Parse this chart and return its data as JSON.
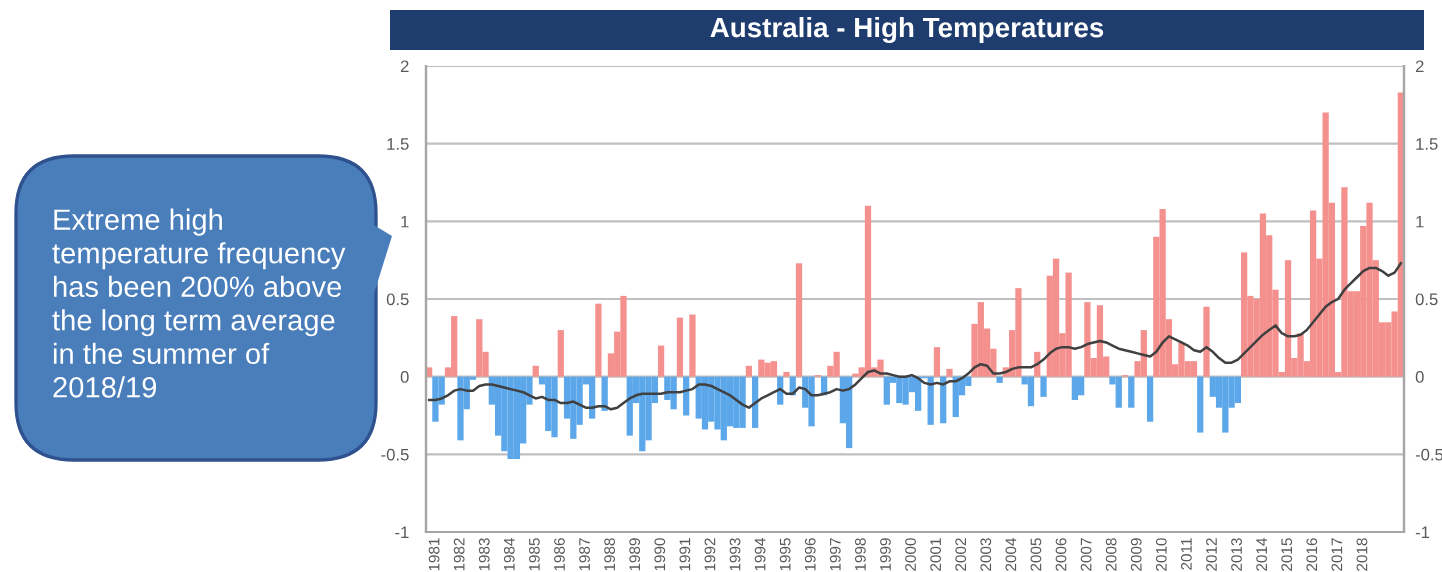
{
  "chart_data": {
    "type": "bar",
    "title": "Australia - High Temperatures",
    "categories": [
      null,
      "1981",
      null,
      null,
      null,
      "1982",
      null,
      null,
      null,
      "1983",
      null,
      null,
      null,
      "1984",
      null,
      null,
      null,
      "1985",
      null,
      null,
      null,
      "1986",
      null,
      null,
      null,
      "1987",
      null,
      null,
      null,
      "1988",
      null,
      null,
      null,
      "1989",
      null,
      null,
      null,
      "1990",
      null,
      null,
      null,
      "1991",
      null,
      null,
      null,
      "1992",
      null,
      null,
      null,
      "1993",
      null,
      null,
      null,
      "1994",
      null,
      null,
      null,
      "1995",
      null,
      null,
      null,
      "1996",
      null,
      null,
      null,
      "1997",
      null,
      null,
      null,
      "1998",
      null,
      null,
      null,
      "1999",
      null,
      null,
      null,
      "2000",
      null,
      null,
      null,
      "2001",
      null,
      null,
      null,
      "2002",
      null,
      null,
      null,
      "2003",
      null,
      null,
      null,
      "2004",
      null,
      null,
      null,
      "2005",
      null,
      null,
      null,
      "2006",
      null,
      null,
      null,
      "2007",
      null,
      null,
      null,
      "2008",
      null,
      null,
      null,
      "2009",
      null,
      null,
      null,
      "2010",
      null,
      null,
      null,
      "2011",
      null,
      null,
      null,
      "2012",
      null,
      null,
      null,
      "2013",
      null,
      null,
      null,
      "2014",
      null,
      null,
      null,
      "2015",
      null,
      null,
      null,
      "2016",
      null,
      null,
      null,
      "2017",
      null,
      null,
      null,
      "2018",
      null,
      null,
      null,
      null,
      null,
      null
    ],
    "series": [
      {
        "values": [
          0.06,
          -0.29,
          -0.18,
          0.06,
          0.39,
          -0.41,
          -0.21,
          -0.02,
          0.37,
          0.16,
          -0.18,
          -0.38,
          -0.48,
          -0.53,
          -0.53,
          -0.43,
          -0.18,
          0.07,
          -0.05,
          -0.35,
          -0.39,
          0.3,
          -0.27,
          -0.4,
          -0.31,
          -0.05,
          -0.27,
          0.47,
          -0.22,
          0.15,
          0.29,
          0.52,
          -0.38,
          -0.17,
          -0.48,
          -0.41,
          -0.17,
          0.2,
          -0.15,
          -0.21,
          0.38,
          -0.25,
          0.4,
          -0.27,
          -0.34,
          -0.29,
          -0.34,
          -0.41,
          -0.32,
          -0.33,
          -0.33,
          0.07,
          -0.33,
          0.11,
          0.09,
          0.1,
          -0.18,
          0.03,
          -0.12,
          0.73,
          -0.2,
          -0.32,
          0.01,
          -0.12,
          0.07,
          0.16,
          -0.3,
          -0.46,
          0.02,
          0.06,
          1.1,
          0.06,
          0.11,
          -0.18,
          -0.04,
          -0.17,
          -0.18,
          -0.1,
          -0.22,
          -0.01,
          -0.31,
          0.19,
          -0.3,
          0.05,
          -0.26,
          -0.12,
          -0.06,
          0.34,
          0.48,
          0.31,
          0.18,
          -0.04,
          0.06,
          0.3,
          0.57,
          -0.05,
          -0.19,
          0.16,
          -0.13,
          0.65,
          0.76,
          0.28,
          0.67,
          -0.15,
          -0.12,
          0.48,
          0.12,
          0.46,
          0.13,
          -0.05,
          -0.2,
          0.01,
          -0.2,
          0.1,
          0.3,
          -0.29,
          0.9,
          1.08,
          0.37,
          0.08,
          0.22,
          0.1,
          0.1,
          -0.36,
          0.45,
          -0.13,
          -0.2,
          -0.36,
          -0.2,
          -0.17,
          0.8,
          0.52,
          0.5,
          1.05,
          0.91,
          0.56,
          0.03,
          0.75,
          0.12,
          0.28,
          0.1,
          1.07,
          0.76,
          1.7,
          1.12,
          0.03,
          1.22,
          0.55,
          0.55,
          0.97,
          1.12,
          0.75,
          0.35,
          0.35,
          0.42,
          1.83
        ],
        "colors": [
          "#f4918e",
          "#5ba7ea",
          "#5ba7ea",
          "#f4918e",
          "#f4918e",
          "#5ba7ea",
          "#5ba7ea",
          "#5ba7ea",
          "#f4918e",
          "#f4918e",
          "#5ba7ea",
          "#5ba7ea",
          "#5ba7ea",
          "#5ba7ea",
          "#5ba7ea",
          "#5ba7ea",
          "#5ba7ea",
          "#f4918e",
          "#5ba7ea",
          "#5ba7ea",
          "#5ba7ea",
          "#f4918e",
          "#5ba7ea",
          "#5ba7ea",
          "#5ba7ea",
          "#5ba7ea",
          "#5ba7ea",
          "#f4918e",
          "#5ba7ea",
          "#f4918e",
          "#f4918e",
          "#f4918e",
          "#5ba7ea",
          "#5ba7ea",
          "#5ba7ea",
          "#5ba7ea",
          "#5ba7ea",
          "#f4918e",
          "#5ba7ea",
          "#5ba7ea",
          "#f4918e",
          "#5ba7ea",
          "#f4918e",
          "#5ba7ea",
          "#5ba7ea",
          "#5ba7ea",
          "#5ba7ea",
          "#5ba7ea",
          "#5ba7ea",
          "#5ba7ea",
          "#5ba7ea",
          "#f4918e",
          "#5ba7ea",
          "#f4918e",
          "#f4918e",
          "#f4918e",
          "#5ba7ea",
          "#f4918e",
          "#5ba7ea",
          "#f4918e",
          "#5ba7ea",
          "#5ba7ea",
          "#f4918e",
          "#5ba7ea",
          "#f4918e",
          "#f4918e",
          "#5ba7ea",
          "#5ba7ea",
          "#f4918e",
          "#f4918e",
          "#f4918e",
          "#f4918e",
          "#f4918e",
          "#5ba7ea",
          "#5ba7ea",
          "#5ba7ea",
          "#5ba7ea",
          "#5ba7ea",
          "#5ba7ea",
          "#5ba7ea",
          "#5ba7ea",
          "#f4918e",
          "#5ba7ea",
          "#f4918e",
          "#5ba7ea",
          "#5ba7ea",
          "#5ba7ea",
          "#f4918e",
          "#f4918e",
          "#f4918e",
          "#f4918e",
          "#5ba7ea",
          "#f4918e",
          "#f4918e",
          "#f4918e",
          "#5ba7ea",
          "#5ba7ea",
          "#f4918e",
          "#5ba7ea",
          "#f4918e",
          "#f4918e",
          "#f4918e",
          "#f4918e",
          "#5ba7ea",
          "#5ba7ea",
          "#f4918e",
          "#f4918e",
          "#f4918e",
          "#f4918e",
          "#5ba7ea",
          "#5ba7ea",
          "#f4918e",
          "#5ba7ea",
          "#f4918e",
          "#f4918e",
          "#5ba7ea",
          "#f4918e",
          "#f4918e",
          "#f4918e",
          "#f4918e",
          "#f4918e",
          "#f4918e",
          "#f4918e",
          "#5ba7ea",
          "#f4918e",
          "#5ba7ea",
          "#5ba7ea",
          "#5ba7ea",
          "#5ba7ea",
          "#5ba7ea",
          "#f4918e",
          "#f4918e",
          "#f4918e",
          "#f4918e",
          "#f4918e",
          "#f4918e",
          "#f4918e",
          "#f4918e",
          "#f4918e",
          "#f4918e",
          "#f4918e",
          "#f4918e",
          "#f4918e",
          "#f4918e",
          "#f4918e",
          "#f4918e",
          "#f4918e",
          "#f4918e",
          "#f4918e",
          "#f4918e",
          "#f4918e",
          "#f4918e",
          "#f4918e",
          "#f4918e",
          "#f4918e",
          "#f4918e"
        ]
      },
      {
        "type": "line",
        "color": "#404040",
        "values": [
          -0.15,
          -0.15,
          -0.14,
          -0.12,
          -0.09,
          -0.08,
          -0.09,
          -0.09,
          -0.06,
          -0.05,
          -0.05,
          -0.06,
          -0.07,
          -0.08,
          -0.09,
          -0.1,
          -0.12,
          -0.14,
          -0.13,
          -0.15,
          -0.15,
          -0.17,
          -0.17,
          -0.16,
          -0.18,
          -0.2,
          -0.2,
          -0.19,
          -0.19,
          -0.21,
          -0.2,
          -0.17,
          -0.14,
          -0.12,
          -0.11,
          -0.11,
          -0.11,
          -0.11,
          -0.1,
          -0.1,
          -0.1,
          -0.09,
          -0.08,
          -0.05,
          -0.05,
          -0.06,
          -0.08,
          -0.1,
          -0.12,
          -0.15,
          -0.18,
          -0.2,
          -0.17,
          -0.14,
          -0.12,
          -0.1,
          -0.08,
          -0.11,
          -0.11,
          -0.07,
          -0.08,
          -0.12,
          -0.12,
          -0.11,
          -0.1,
          -0.08,
          -0.09,
          -0.08,
          -0.05,
          -0.01,
          0.03,
          0.04,
          0.02,
          0.02,
          0.01,
          0.0,
          0.0,
          0.01,
          -0.01,
          -0.04,
          -0.05,
          -0.04,
          -0.05,
          -0.03,
          -0.03,
          -0.01,
          0.02,
          0.06,
          0.08,
          0.07,
          0.02,
          0.02,
          0.03,
          0.05,
          0.06,
          0.06,
          0.06,
          0.08,
          0.11,
          0.15,
          0.18,
          0.19,
          0.19,
          0.18,
          0.19,
          0.21,
          0.22,
          0.23,
          0.22,
          0.2,
          0.18,
          0.17,
          0.16,
          0.15,
          0.14,
          0.13,
          0.16,
          0.22,
          0.26,
          0.24,
          0.22,
          0.2,
          0.17,
          0.16,
          0.19,
          0.16,
          0.12,
          0.09,
          0.09,
          0.11,
          0.15,
          0.19,
          0.23,
          0.27,
          0.3,
          0.33,
          0.28,
          0.26,
          0.26,
          0.27,
          0.3,
          0.35,
          0.4,
          0.45,
          0.48,
          0.5,
          0.56,
          0.6,
          0.64,
          0.68,
          0.7,
          0.7,
          0.68,
          0.65,
          0.67,
          0.73
        ]
      }
    ],
    "ylim": [
      -1,
      2
    ],
    "yticks": [
      {
        "value": -1,
        "label": "-1"
      },
      {
        "value": -0.5,
        "label": "-0.5"
      },
      0,
      0.5,
      1,
      1.5,
      2
    ],
    "y2lim": [
      -1,
      2
    ],
    "y2ticks": [
      {
        "value": -1,
        "label": "-1"
      },
      {
        "value": -0.5,
        "label": "-0.5"
      },
      0,
      0.5,
      1,
      1.5,
      2
    ],
    "grid": "y",
    "annotations": [
      "Extreme high temperature frequency has been 200% above the long term average in the summer of 2018/19"
    ]
  }
}
